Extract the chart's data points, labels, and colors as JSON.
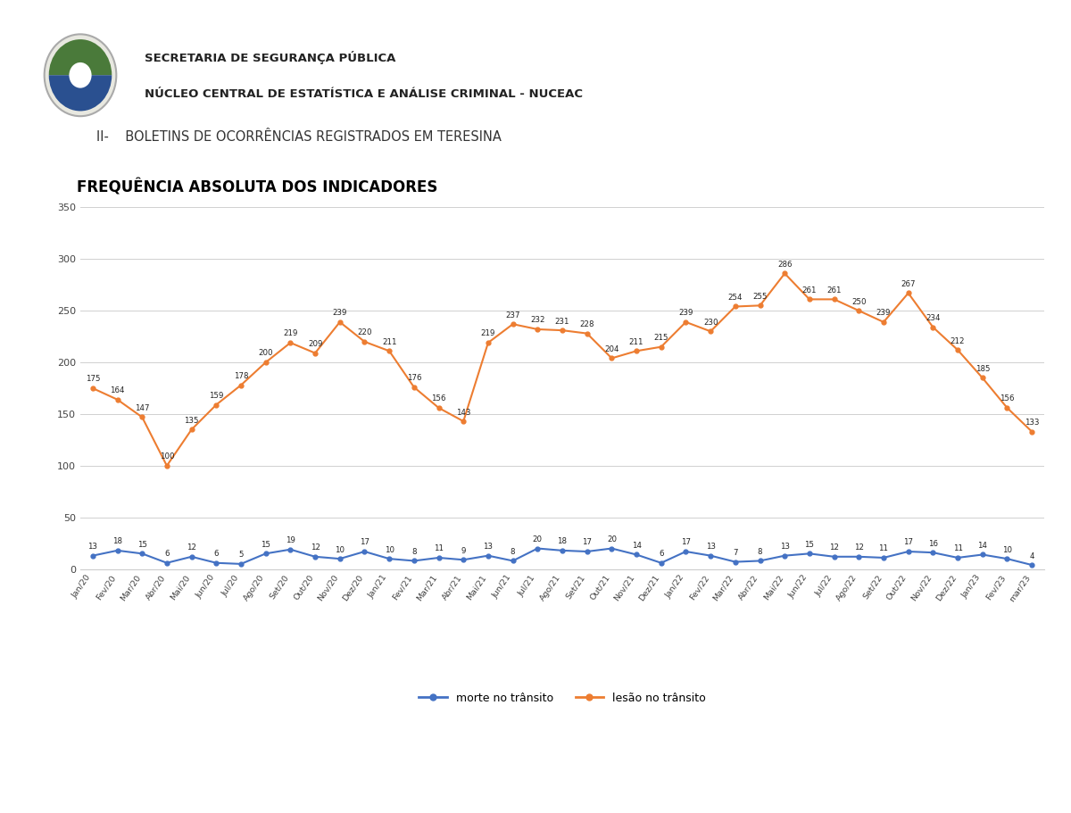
{
  "title_line1": "II-    BOLETINS DE OCORRÊNCIAS REGISTRADOS EM TERESINA",
  "title_line2": "FREQUÊNCIA ABSOLUTA DOS INDICADORES",
  "header_line1": "SECRETARIA DE SEGURANÇA PÚBLICA",
  "header_line2": "NÚCLEO CENTRAL DE ESTATÍSTICA E ANÁLISE CRIMINAL - NUCEAC",
  "x_labels": [
    "Jan/20",
    "Fev/20",
    "Mar/20",
    "Abr/20",
    "Mai/20",
    "Jun/20",
    "Jul/20",
    "Ago/20",
    "Set/20",
    "Out/20",
    "Nov/20",
    "Dez/20",
    "Jan/21",
    "Fev/21",
    "Mar/21",
    "Abr/21",
    "Mai/21",
    "Jun/21",
    "Jul/21",
    "Ago/21",
    "Set/21",
    "Out/21",
    "Nov/21",
    "Dez/21",
    "Jan/22",
    "Fev/22",
    "Mar/22",
    "Abr/22",
    "Mai/22",
    "Jun/22",
    "Jul/22",
    "Ago/22",
    "Set/22",
    "Out/22",
    "Nov/22",
    "Dez/22",
    "Jan/23",
    "Fev/23",
    "mar/23"
  ],
  "morte_transito": [
    13,
    18,
    15,
    6,
    12,
    6,
    5,
    15,
    19,
    12,
    10,
    17,
    10,
    8,
    11,
    9,
    13,
    8,
    20,
    18,
    17,
    20,
    14,
    6,
    17,
    13,
    7,
    8,
    13,
    15,
    12,
    12,
    11,
    17,
    16,
    11,
    14,
    10,
    4
  ],
  "lesao_transito": [
    175,
    164,
    147,
    100,
    135,
    159,
    178,
    200,
    219,
    209,
    239,
    220,
    211,
    176,
    156,
    143,
    219,
    237,
    232,
    231,
    228,
    204,
    211,
    215,
    239,
    230,
    254,
    255,
    286,
    261,
    261,
    250,
    239,
    267,
    234,
    212,
    185,
    156,
    133
  ],
  "morte_color": "#4472c4",
  "lesao_color": "#ed7d31",
  "ylim": [
    0,
    350
  ],
  "yticks": [
    0,
    50,
    100,
    150,
    200,
    250,
    300,
    350
  ],
  "background_color": "#ffffff",
  "chart_bg": "#ffffff",
  "grid_color": "#d0d0d0",
  "legend_morte": "morte no trânsito",
  "legend_lesao": "lesão no trânsito",
  "top_bar_color": "#c8c8c8",
  "header_text_color": "#222222",
  "title1_color": "#333333",
  "title2_color": "#000000"
}
